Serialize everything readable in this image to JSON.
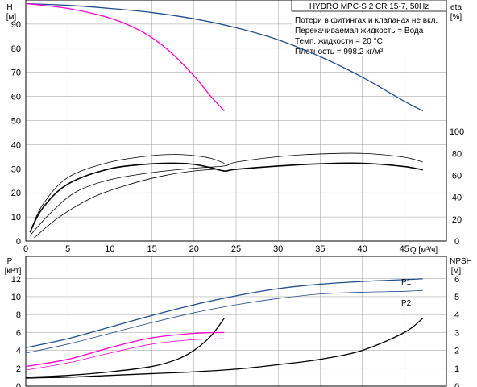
{
  "colors": {
    "head_curve": "#1f4e8c",
    "head_curve_partial": "#ff00cc",
    "efficiency_curve": "#000000",
    "power_curve": "#1f4e8c",
    "power_curve_partial": "#ff00cc",
    "npsh_curve": "#000000",
    "grid": "#9a9a9a"
  },
  "chart_data": [
    {
      "type": "line",
      "panel": "head_efficiency",
      "title": "HYDRO MPC-S 2 CR 15-7, 50Hz",
      "notes": [
        "Потери в фитингах и клапанах не вкл.",
        "Перекачиваемая жидкость = Вода",
        "Темп. жидкости = 20 °C",
        "Плотность = 998.2 кг/м³"
      ],
      "xlabel": "Q [м³/ч]",
      "ylabel_left": [
        "H",
        "[м]"
      ],
      "ylabel_right": [
        "eta",
        "[%]"
      ],
      "xlim": [
        0,
        50
      ],
      "ylim_left": [
        0,
        100
      ],
      "ylim_right": [
        0,
        220
      ],
      "x_ticks": [
        "0",
        "5",
        "10",
        "15",
        "20",
        "25",
        "30",
        "35",
        "40",
        "45"
      ],
      "y_ticks_left": [
        "0",
        "10",
        "20",
        "30",
        "40",
        "50",
        "60",
        "70",
        "80",
        "90"
      ],
      "y_ticks_right": [
        "0",
        "20",
        "40",
        "60",
        "80",
        "100"
      ],
      "grid": true,
      "series": [
        {
          "axis": "left",
          "color_key": "head_curve",
          "width": 1.3,
          "x": [
            0,
            5,
            10,
            15,
            20,
            25,
            30,
            35,
            40,
            45,
            47.2
          ],
          "y": [
            98.5,
            97.8,
            96.5,
            94.8,
            92.2,
            88.5,
            83.5,
            76.5,
            68,
            58,
            54
          ]
        },
        {
          "axis": "left",
          "color_key": "head_curve_partial",
          "width": 1.3,
          "x": [
            0,
            5,
            10,
            14,
            17,
            20,
            22,
            23.6
          ],
          "y": [
            98.5,
            96.5,
            92.5,
            86.5,
            79,
            68.5,
            60,
            54
          ]
        },
        {
          "axis": "right",
          "color_key": "efficiency_curve",
          "width": 1.6,
          "x": [
            0.5,
            2,
            5,
            10,
            15,
            18,
            20,
            22,
            23.6,
            25,
            30,
            35,
            40,
            45,
            47.2
          ],
          "y": [
            8,
            30,
            52,
            66,
            70.5,
            71,
            70,
            67,
            64,
            65.5,
            68.5,
            70.5,
            71,
            68,
            65
          ]
        },
        {
          "axis": "right",
          "color_key": "efficiency_curve",
          "width": 0.8,
          "x": [
            0.5,
            2,
            5,
            10,
            15,
            18,
            20,
            22,
            23.6
          ],
          "y": [
            8,
            33,
            58,
            72,
            78,
            79,
            78,
            75.5,
            71
          ]
        },
        {
          "axis": "right",
          "color_key": "efficiency_curve",
          "width": 0.8,
          "x": [
            0.5,
            3,
            6,
            10,
            15,
            20,
            23.6,
            25,
            30,
            35,
            40,
            45,
            47.2
          ],
          "y": [
            5,
            26,
            45,
            56,
            62.5,
            66.5,
            68.5,
            72,
            77,
            79.5,
            80,
            76.5,
            72
          ]
        },
        {
          "axis": "right",
          "color_key": "efficiency_curve",
          "width": 0.8,
          "x": [
            1,
            4,
            8,
            12,
            16,
            20,
            23.6
          ],
          "y": [
            3,
            22,
            40,
            51,
            59,
            64,
            66
          ]
        }
      ]
    },
    {
      "type": "line",
      "panel": "power_npsh",
      "xlabel": "",
      "ylabel_left": [
        "P",
        "[кВт]"
      ],
      "ylabel_right": [
        "NPSH",
        "[м]"
      ],
      "xlim": [
        0,
        50
      ],
      "ylim_left": [
        0,
        14.5
      ],
      "ylim_right": [
        0,
        7.25
      ],
      "y_ticks_left": [
        "0",
        "2",
        "4",
        "6",
        "8",
        "10",
        "12"
      ],
      "y_ticks_right": [
        "0",
        "1",
        "2",
        "3",
        "4",
        "5",
        "6"
      ],
      "grid": true,
      "labels": [
        "P1",
        "P2"
      ],
      "series": [
        {
          "label": "P1",
          "axis": "left",
          "color_key": "power_curve",
          "width": 1.3,
          "x": [
            0,
            5,
            10,
            15,
            20,
            25,
            30,
            35,
            40,
            45,
            47.2
          ],
          "y": [
            4.3,
            5.3,
            6.6,
            7.9,
            9.1,
            10.1,
            10.9,
            11.4,
            11.7,
            11.9,
            12
          ]
        },
        {
          "label": "P2",
          "axis": "left",
          "color_key": "power_curve",
          "width": 0.8,
          "x": [
            0,
            5,
            10,
            15,
            20,
            25,
            30,
            35,
            40,
            45,
            47.2
          ],
          "y": [
            3.7,
            4.7,
            5.9,
            7.1,
            8.2,
            9.1,
            9.8,
            10.3,
            10.5,
            10.6,
            10.7
          ]
        },
        {
          "axis": "left",
          "color_key": "power_curve_partial",
          "width": 1.3,
          "x": [
            0,
            5,
            10,
            15,
            20,
            23.6
          ],
          "y": [
            2.2,
            3.0,
            4.3,
            5.4,
            5.9,
            6.0
          ]
        },
        {
          "axis": "left",
          "color_key": "power_curve_partial",
          "width": 0.8,
          "x": [
            0,
            5,
            10,
            15,
            20,
            23.6
          ],
          "y": [
            1.8,
            2.6,
            3.7,
            4.7,
            5.2,
            5.3
          ]
        },
        {
          "axis": "right",
          "color_key": "npsh_curve",
          "width": 1.3,
          "x": [
            0,
            5,
            10,
            15,
            18,
            20,
            22,
            23.6
          ],
          "y": [
            0.5,
            0.6,
            0.8,
            1.1,
            1.5,
            2.0,
            2.8,
            3.8
          ]
        },
        {
          "axis": "right",
          "color_key": "npsh_curve",
          "width": 1.3,
          "x": [
            0,
            5,
            10,
            15,
            20,
            25,
            30,
            35,
            40,
            45,
            47.2
          ],
          "y": [
            0.45,
            0.5,
            0.6,
            0.7,
            0.8,
            0.95,
            1.2,
            1.5,
            2.0,
            3.0,
            3.8
          ]
        }
      ]
    }
  ]
}
